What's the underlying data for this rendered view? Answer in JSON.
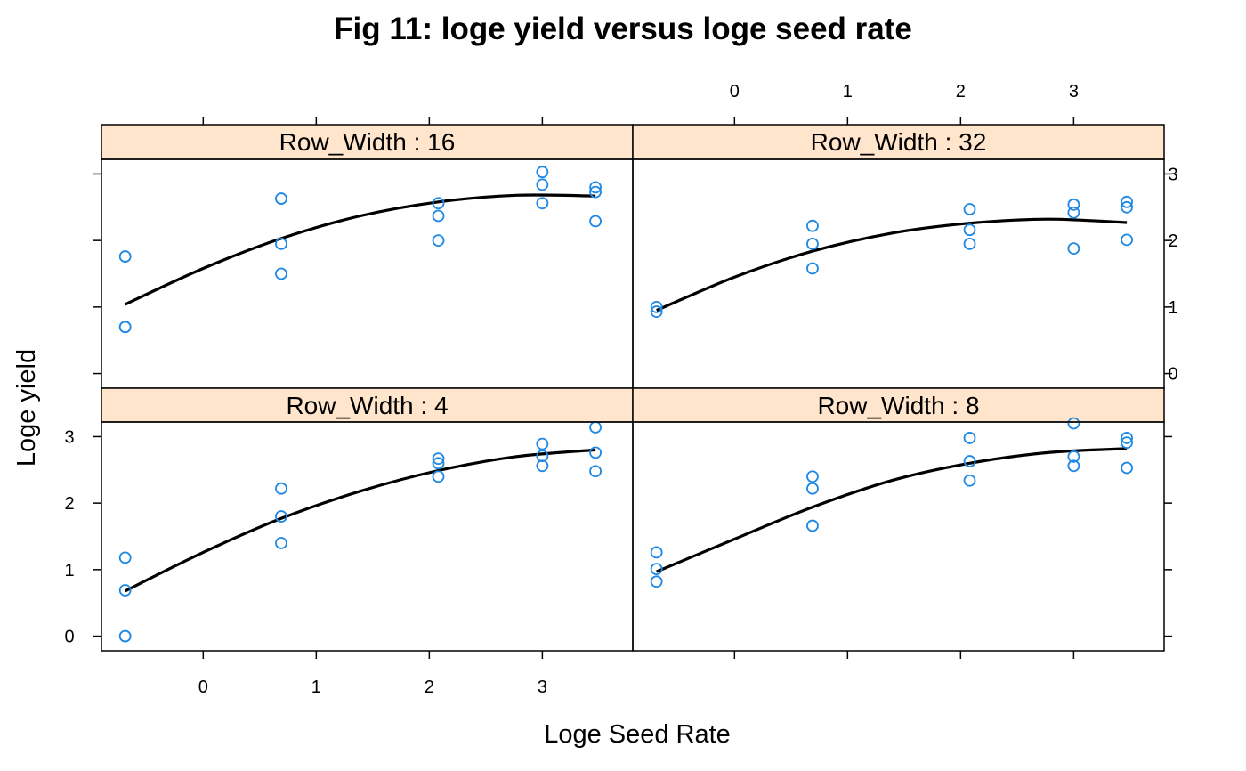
{
  "title": "Fig 11: loge yield versus loge seed rate",
  "xlabel": "Loge Seed Rate",
  "ylabel": "Loge yield",
  "colors": {
    "points": "#1e88e5",
    "strip": "#ffe5cc",
    "curve": "#000000"
  },
  "chart_data": {
    "type": "scatter",
    "subtype": "lattice-xyplot-with-quadratic-fit",
    "title": "Fig 11: loge yield versus loge seed rate",
    "xlabel": "Loge Seed Rate",
    "ylabel": "Loge yield",
    "xlim": [
      -0.9,
      3.8
    ],
    "ylim": [
      -0.22,
      3.22
    ],
    "x_ticks": [
      0,
      1,
      2,
      3
    ],
    "y_ticks": [
      0,
      1,
      2,
      3
    ],
    "grid": false,
    "legend": "none",
    "layout": "2x2",
    "panels": [
      {
        "strip": "Row_Width : 16",
        "row": "top",
        "col": "left",
        "points": [
          [
            -0.69,
            1.76
          ],
          [
            -0.69,
            0.7
          ],
          [
            -0.69,
            0.7
          ],
          [
            0.69,
            2.63
          ],
          [
            0.69,
            1.95
          ],
          [
            0.69,
            1.5
          ],
          [
            2.08,
            2.56
          ],
          [
            2.08,
            2.37
          ],
          [
            2.08,
            2.0
          ],
          [
            3.0,
            3.03
          ],
          [
            3.0,
            2.84
          ],
          [
            3.0,
            2.56
          ],
          [
            3.47,
            2.8
          ],
          [
            3.47,
            2.73
          ],
          [
            3.47,
            2.29
          ]
        ],
        "fit": [
          [
            -0.69,
            1.04
          ],
          [
            0.0,
            1.58
          ],
          [
            0.69,
            2.03
          ],
          [
            1.39,
            2.37
          ],
          [
            2.08,
            2.58
          ],
          [
            2.77,
            2.68
          ],
          [
            3.47,
            2.67
          ]
        ]
      },
      {
        "strip": "Row_Width : 32",
        "row": "top",
        "col": "right",
        "points": [
          [
            -0.69,
            1.0
          ],
          [
            -0.69,
            0.93
          ],
          [
            0.69,
            2.22
          ],
          [
            0.69,
            1.95
          ],
          [
            0.69,
            1.58
          ],
          [
            2.08,
            2.47
          ],
          [
            2.08,
            2.16
          ],
          [
            2.08,
            1.95
          ],
          [
            3.0,
            2.54
          ],
          [
            3.0,
            2.42
          ],
          [
            3.0,
            1.88
          ],
          [
            3.47,
            2.58
          ],
          [
            3.47,
            2.5
          ],
          [
            3.47,
            2.01
          ]
        ],
        "fit": [
          [
            -0.69,
            0.95
          ],
          [
            0.0,
            1.45
          ],
          [
            0.69,
            1.84
          ],
          [
            1.39,
            2.11
          ],
          [
            2.08,
            2.26
          ],
          [
            2.77,
            2.32
          ],
          [
            3.47,
            2.27
          ]
        ]
      },
      {
        "strip": "Row_Width : 4",
        "row": "bottom",
        "col": "left",
        "points": [
          [
            -0.69,
            1.18
          ],
          [
            -0.69,
            0.69
          ],
          [
            -0.69,
            0.0
          ],
          [
            0.69,
            2.22
          ],
          [
            0.69,
            1.8
          ],
          [
            0.69,
            1.4
          ],
          [
            2.08,
            2.67
          ],
          [
            2.08,
            2.6
          ],
          [
            2.08,
            2.4
          ],
          [
            3.0,
            2.89
          ],
          [
            3.0,
            2.71
          ],
          [
            3.0,
            2.56
          ],
          [
            3.47,
            3.14
          ],
          [
            3.47,
            2.76
          ],
          [
            3.47,
            2.48
          ]
        ],
        "fit": [
          [
            -0.69,
            0.68
          ],
          [
            0.0,
            1.26
          ],
          [
            0.69,
            1.77
          ],
          [
            1.39,
            2.18
          ],
          [
            2.08,
            2.49
          ],
          [
            2.77,
            2.7
          ],
          [
            3.47,
            2.8
          ]
        ]
      },
      {
        "strip": "Row_Width : 8",
        "row": "bottom",
        "col": "right",
        "points": [
          [
            -0.69,
            1.26
          ],
          [
            -0.69,
            1.01
          ],
          [
            -0.69,
            0.82
          ],
          [
            0.69,
            2.4
          ],
          [
            0.69,
            2.22
          ],
          [
            0.69,
            1.66
          ],
          [
            2.08,
            2.98
          ],
          [
            2.08,
            2.63
          ],
          [
            2.08,
            2.34
          ],
          [
            3.0,
            3.2
          ],
          [
            3.0,
            2.7
          ],
          [
            3.0,
            2.56
          ],
          [
            3.47,
            2.98
          ],
          [
            3.47,
            2.91
          ],
          [
            3.47,
            2.53
          ]
        ],
        "fit": [
          [
            -0.69,
            0.97
          ],
          [
            0.0,
            1.46
          ],
          [
            0.69,
            1.94
          ],
          [
            1.39,
            2.34
          ],
          [
            2.08,
            2.6
          ],
          [
            2.77,
            2.76
          ],
          [
            3.47,
            2.82
          ]
        ]
      }
    ]
  }
}
